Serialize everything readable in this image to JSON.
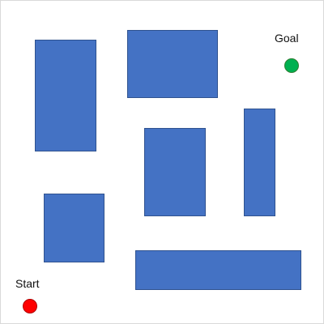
{
  "labels": {
    "goal": "Goal",
    "start": "Start"
  },
  "colors": {
    "obstacle": "#4472c4",
    "goal": "#00b050",
    "start": "#ff0000",
    "background": "#ffffff"
  }
}
